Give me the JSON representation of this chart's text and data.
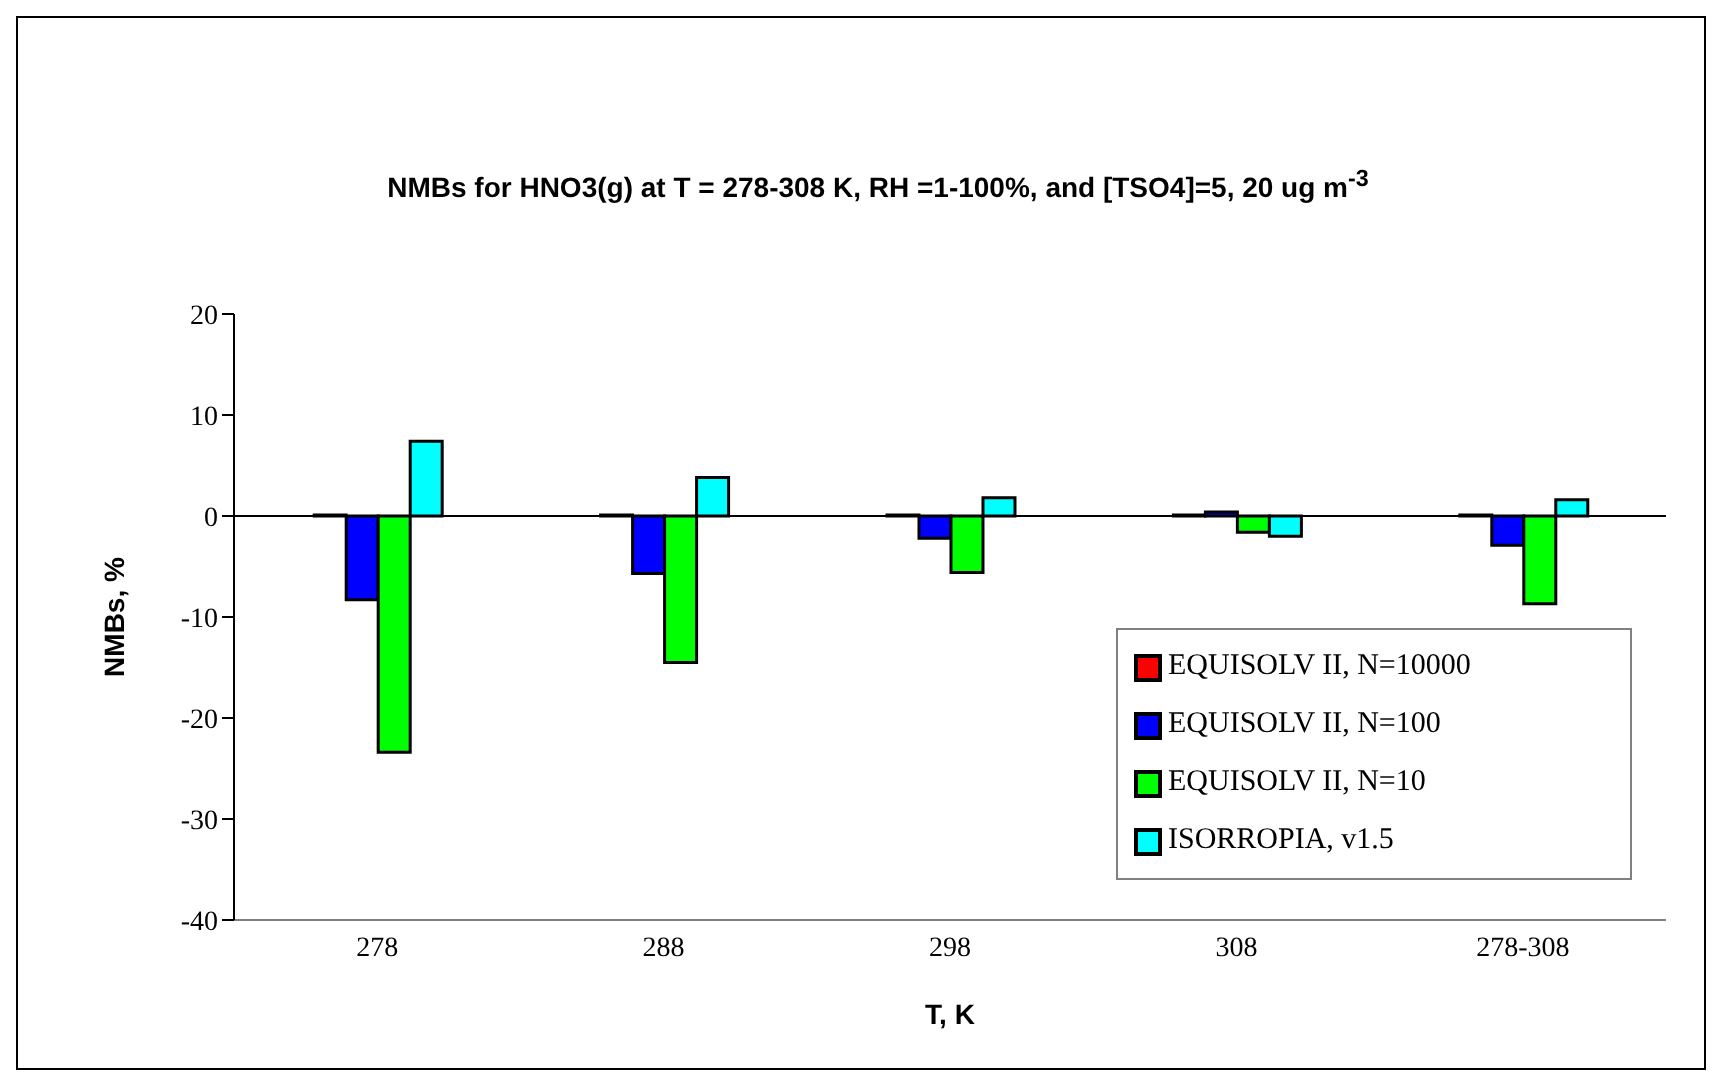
{
  "chart_data": {
    "type": "bar",
    "title": "NMBs for HNO3(g) at T = 278-308 K, RH =1-100%, and [TSO4]=5, 20 ug m$^{-3}$",
    "xlabel": "T, K",
    "ylabel": "NMBs, %",
    "categories": [
      "278",
      "288",
      "298",
      "308",
      "278-308"
    ],
    "series": [
      {
        "name": "EQUISOLV II, N=10000",
        "color": "#ff0000",
        "values": [
          0.1,
          0.1,
          0.1,
          0.1,
          0.1
        ]
      },
      {
        "name": "EQUISOLV II, N=100",
        "color": "#0000ff",
        "values": [
          -8.3,
          -5.7,
          -2.2,
          0.4,
          -2.9
        ]
      },
      {
        "name": "EQUISOLV II, N=10",
        "color": "#00ff00",
        "values": [
          -23.4,
          -14.5,
          -5.6,
          -1.6,
          -8.7
        ]
      },
      {
        "name": "ISORROPIA, v1.5",
        "color": "#00ffff",
        "values": [
          7.4,
          3.8,
          1.8,
          -2.0,
          1.6
        ]
      }
    ],
    "ylim": [
      -40,
      20
    ],
    "yticks": [
      -40,
      -30,
      -20,
      -10,
      0,
      10,
      20
    ],
    "legend": "bottom right"
  }
}
